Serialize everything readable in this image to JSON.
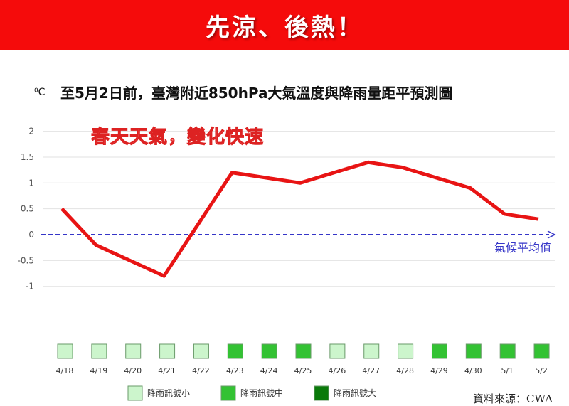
{
  "banner": {
    "text": "先涼、後熱！"
  },
  "unit": "⁰C",
  "note": "春天天氣，變化快速",
  "source": "資料來源：CWA",
  "colors": {
    "banner": "#f50b0b",
    "line": "#e81414",
    "avg": "#3535c8",
    "rain_small": "#ccf5cc",
    "rain_mid": "#33c233",
    "rain_large": "#0a7a0a"
  },
  "chart_data": {
    "type": "line",
    "title": "至5月2日前，臺灣附近850hPa大氣溫度與降雨量距平預測圖",
    "ylabel": "⁰C",
    "ylim": [
      -1,
      2
    ],
    "yticks": [
      "2",
      "1.5",
      "1",
      "0.5",
      "0",
      "-0.5",
      "-1"
    ],
    "grid": true,
    "categories": [
      "4/18",
      "4/19",
      "4/20",
      "4/21",
      "4/22",
      "4/23",
      "4/24",
      "4/25",
      "4/26",
      "4/27",
      "4/28",
      "4/29",
      "4/30",
      "5/1",
      "5/2"
    ],
    "values": [
      0.5,
      -0.2,
      -0.5,
      -0.8,
      0.2,
      1.2,
      1.1,
      1.0,
      1.2,
      1.4,
      1.3,
      1.1,
      0.9,
      0.4,
      0.3
    ],
    "baseline": {
      "value": 0,
      "label": "氣候平均值"
    },
    "rain_signal": [
      "small",
      "small",
      "small",
      "small",
      "small",
      "mid",
      "mid",
      "mid",
      "small",
      "small",
      "small",
      "mid",
      "mid",
      "mid",
      "mid"
    ],
    "legend": [
      {
        "key": "small",
        "label": "降雨訊號小"
      },
      {
        "key": "mid",
        "label": "降雨訊號中"
      },
      {
        "key": "large",
        "label": "降雨訊號大"
      }
    ]
  }
}
